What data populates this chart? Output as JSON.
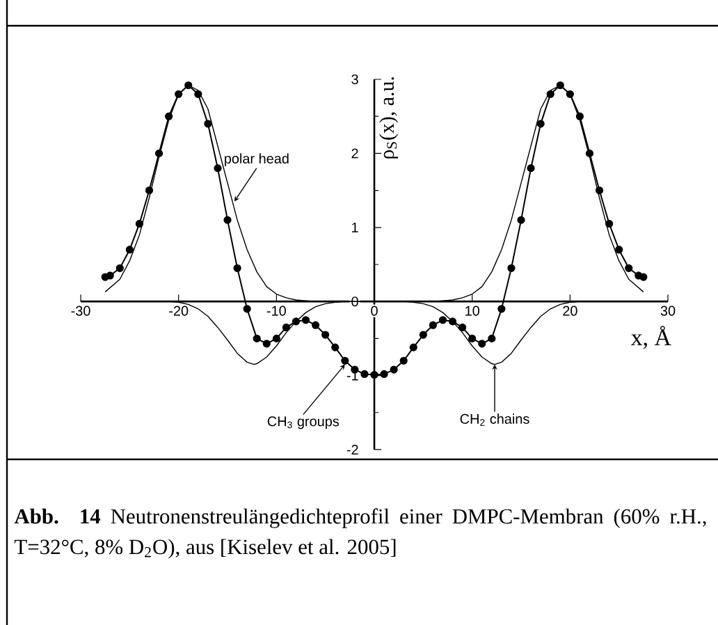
{
  "chart_data": {
    "type": "line",
    "xlabel": "x, Å",
    "ylabel": "ρ$_{S}$(x), a.u.",
    "xlim": [
      -30,
      30
    ],
    "ylim": [
      -2,
      3
    ],
    "xticks": [
      -30,
      -20,
      -10,
      0,
      10,
      20,
      30
    ],
    "yticks": [
      -2,
      -1,
      0,
      1,
      2,
      3
    ],
    "grid": false,
    "series": [
      {
        "color": "#000000",
        "marker": "circle",
        "x": [
          -27.5,
          -27,
          -26,
          -25,
          -24,
          -23,
          -22,
          -21,
          -20,
          -19,
          -18,
          -17,
          -16,
          -15,
          -14,
          -13,
          -12,
          -11,
          -10,
          -9,
          -8,
          -7,
          -6,
          -5,
          -4,
          -3,
          -2,
          -1,
          0,
          1,
          2,
          3,
          4,
          5,
          6,
          7,
          8,
          9,
          10,
          11,
          12,
          13,
          14,
          15,
          16,
          17,
          18,
          19,
          20,
          21,
          22,
          23,
          24,
          25,
          26,
          27,
          27.5
        ],
        "values": [
          0.33,
          0.35,
          0.45,
          0.7,
          1.05,
          1.5,
          2.0,
          2.5,
          2.8,
          2.92,
          2.8,
          2.4,
          1.8,
          1.1,
          0.45,
          -0.1,
          -0.5,
          -0.57,
          -0.5,
          -0.35,
          -0.27,
          -0.25,
          -0.32,
          -0.45,
          -0.62,
          -0.8,
          -0.92,
          -0.98,
          -0.99,
          -0.98,
          -0.92,
          -0.8,
          -0.62,
          -0.45,
          -0.32,
          -0.25,
          -0.27,
          -0.35,
          -0.5,
          -0.57,
          -0.5,
          -0.1,
          0.45,
          1.1,
          1.8,
          2.4,
          2.8,
          2.92,
          2.8,
          2.5,
          2.0,
          1.5,
          1.05,
          0.7,
          0.45,
          0.35,
          0.33
        ]
      },
      {
        "color": "#000000",
        "marker": "none",
        "x": [
          -27.5,
          -26,
          -25,
          -24,
          -23,
          -22,
          -21,
          -20,
          -19,
          -18,
          -17,
          -16,
          -15,
          -14,
          -13,
          -12,
          -11,
          -10,
          -9,
          -8,
          -7,
          -6,
          0,
          6,
          7,
          8,
          9,
          10,
          11,
          12,
          13,
          14,
          15,
          16,
          17,
          18,
          19,
          20,
          21,
          22,
          23,
          24,
          25,
          26,
          27.5
        ],
        "values": [
          0.13,
          0.3,
          0.55,
          0.9,
          1.4,
          1.95,
          2.45,
          2.8,
          2.92,
          2.85,
          2.6,
          2.1,
          1.6,
          1.1,
          0.7,
          0.4,
          0.2,
          0.1,
          0.05,
          0.02,
          0.01,
          0,
          0,
          0,
          0.01,
          0.02,
          0.05,
          0.1,
          0.2,
          0.4,
          0.7,
          1.1,
          1.6,
          2.1,
          2.6,
          2.85,
          2.92,
          2.8,
          2.45,
          1.95,
          1.4,
          0.9,
          0.55,
          0.3,
          0.13
        ]
      },
      {
        "color": "#000000",
        "marker": "none",
        "x": [
          -27.5,
          -21,
          -20,
          -19,
          -18,
          -17,
          -16,
          -15,
          -14,
          -13,
          -12.3,
          -12,
          -11,
          -10,
          -9,
          -8,
          -7,
          -6,
          -5,
          -4,
          -3,
          0,
          3,
          4,
          5,
          6,
          7,
          8,
          9,
          10,
          11,
          12,
          12.3,
          13,
          14,
          15,
          16,
          17,
          18,
          19,
          20,
          21,
          27.5
        ],
        "values": [
          0,
          0,
          -0.01,
          -0.04,
          -0.1,
          -0.2,
          -0.35,
          -0.52,
          -0.7,
          -0.82,
          -0.85,
          -0.84,
          -0.75,
          -0.6,
          -0.42,
          -0.27,
          -0.15,
          -0.07,
          -0.03,
          -0.01,
          0,
          0,
          0,
          -0.01,
          -0.03,
          -0.07,
          -0.15,
          -0.27,
          -0.42,
          -0.6,
          -0.75,
          -0.84,
          -0.85,
          -0.82,
          -0.7,
          -0.52,
          -0.35,
          -0.2,
          -0.1,
          -0.04,
          -0.01,
          0,
          0
        ]
      }
    ],
    "annotations": [
      {
        "text": "polar  head",
        "x": -14.3,
        "y": 1.35
      },
      {
        "text": "CH$_{3}$ groups",
        "x": -3,
        "y": -0.85
      },
      {
        "text": "CH$_{2}$ chains",
        "x": 12.3,
        "y": -0.85
      },
      "**Abb. 14** Neutronenstreulängedichteprofil einer DMPC-Membran (60% r.H., T=32°C, 8% D$_{2}$O), aus [Kiselev et al. 2005]"
    ]
  }
}
